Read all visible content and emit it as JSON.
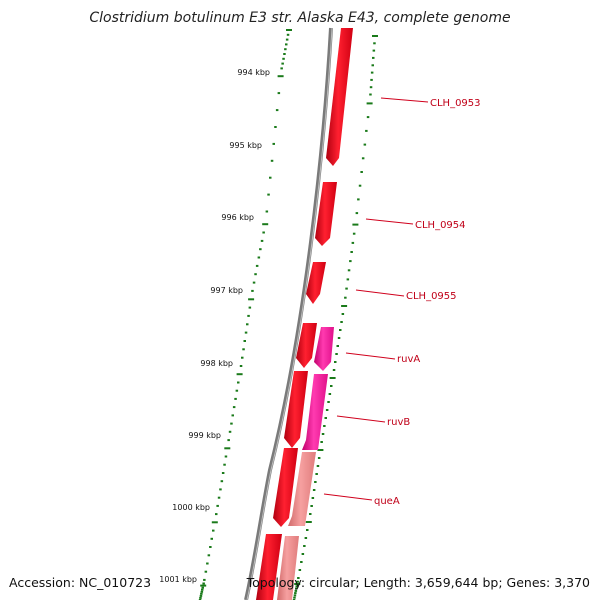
{
  "title": "Clostridium botulinum E3 str. Alaska E43, complete genome",
  "footer": {
    "accession": "Accession: NC_010723",
    "summary": "Topology: circular; Length: 3,659,644 bp; Genes: 3,370"
  },
  "ruler": {
    "labels": [
      "994 kbp",
      "995 kbp",
      "996 kbp",
      "997 kbp",
      "998 kbp",
      "999 kbp",
      "1000 kbp",
      "1001 kbp"
    ]
  },
  "genes": [
    {
      "label": "CLH_0953",
      "color": "#e8001c"
    },
    {
      "label": "CLH_0954",
      "color": "#e8001c"
    },
    {
      "label": "CLH_0955",
      "color": "#e8001c"
    },
    {
      "label": "ruvA",
      "color": "#ff1f9e"
    },
    {
      "label": "ruvB",
      "color": "#ff1f9e"
    },
    {
      "label": "queA",
      "color": "#f08a8a"
    }
  ],
  "colors": {
    "backbone": "#7a7a7a",
    "tick_green": "#1a7a1a",
    "label_line": "#d0001c",
    "label_text": "#c00018"
  }
}
